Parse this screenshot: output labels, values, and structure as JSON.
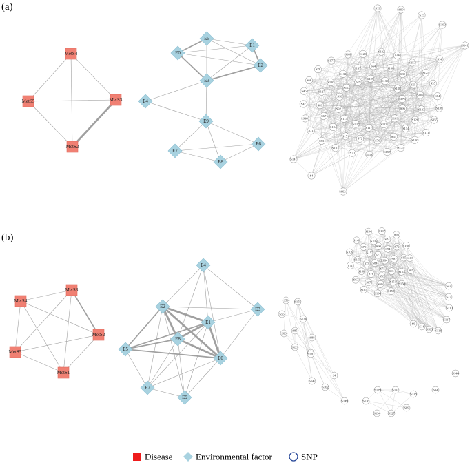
{
  "panels": [
    {
      "id": "a",
      "label": "(a)",
      "disease": {
        "nodes": [
          {
            "id": "MetS4",
            "label": "MetS4"
          },
          {
            "id": "MetS5",
            "label": "MetS5"
          },
          {
            "id": "MetS3",
            "label": "MetS3"
          },
          {
            "id": "MetS2",
            "label": "MetS2"
          }
        ],
        "edges": [
          [
            "MetS4",
            "MetS5",
            1
          ],
          [
            "MetS4",
            "MetS3",
            1
          ],
          [
            "MetS4",
            "MetS2",
            1
          ],
          [
            "MetS5",
            "MetS3",
            1
          ],
          [
            "MetS5",
            "MetS2",
            1
          ],
          [
            "MetS3",
            "MetS2",
            3
          ]
        ]
      },
      "environment": {
        "nodes": [
          {
            "id": "E5",
            "label": "E5"
          },
          {
            "id": "E0",
            "label": "E0"
          },
          {
            "id": "E1",
            "label": "E1"
          },
          {
            "id": "E2",
            "label": "E2"
          },
          {
            "id": "E3",
            "label": "E3"
          },
          {
            "id": "E4",
            "label": "E4"
          },
          {
            "id": "E9",
            "label": "E9"
          },
          {
            "id": "E6",
            "label": "E6"
          },
          {
            "id": "E7",
            "label": "E7"
          },
          {
            "id": "E8",
            "label": "E8"
          }
        ],
        "edges": [
          [
            "E5",
            "E0",
            2
          ],
          [
            "E5",
            "E1",
            1
          ],
          [
            "E5",
            "E2",
            1
          ],
          [
            "E5",
            "E3",
            1
          ],
          [
            "E0",
            "E1",
            1
          ],
          [
            "E0",
            "E2",
            1
          ],
          [
            "E0",
            "E3",
            2
          ],
          [
            "E1",
            "E2",
            2
          ],
          [
            "E1",
            "E3",
            1
          ],
          [
            "E2",
            "E3",
            2
          ],
          [
            "E3",
            "E4",
            1
          ],
          [
            "E3",
            "E9",
            1
          ],
          [
            "E4",
            "E9",
            1
          ],
          [
            "E9",
            "E6",
            1
          ],
          [
            "E9",
            "E7",
            1
          ],
          [
            "E9",
            "E8",
            1
          ],
          [
            "E7",
            "E8",
            1
          ],
          [
            "E8",
            "E6",
            1
          ],
          [
            "E7",
            "E6",
            1
          ]
        ]
      },
      "snp": {
        "cluster_nodes": [
          "S19",
          "S99",
          "S15",
          "S100",
          "S141",
          "S14",
          "S112",
          "S117",
          "S102",
          "S114",
          "S32",
          "S16",
          "S113",
          "S79",
          "S129",
          "S130",
          "S108",
          "S176",
          "S96",
          "S109",
          "S104",
          "S67",
          "S69",
          "S127",
          "S110",
          "S131",
          "S137",
          "S64",
          "S106",
          "S39",
          "S65",
          "S103",
          "S133",
          "S126",
          "S134",
          "S63",
          "S76",
          "S72",
          "S151",
          "S157",
          "S113b",
          "S70",
          "S107",
          "S73",
          "S71",
          "S36",
          "S47",
          "S45",
          "S66",
          "S78",
          "S177",
          "S161",
          "S120",
          "S132",
          "S46",
          "S153",
          "S125",
          "S35",
          "S84",
          "S136",
          "S155",
          "S111",
          "S150",
          "S175"
        ],
        "outer_nodes": [
          "S147",
          "S4",
          "S62"
        ]
      }
    },
    {
      "id": "b",
      "label": "(b)",
      "disease": {
        "nodes": [
          {
            "id": "MetS4",
            "label": "MetS4"
          },
          {
            "id": "MetS3",
            "label": "MetS3"
          },
          {
            "id": "MetS2",
            "label": "MetS2"
          },
          {
            "id": "MetS5",
            "label": "MetS5"
          },
          {
            "id": "MetS1",
            "label": "MetS1"
          }
        ],
        "edges": [
          [
            "MetS4",
            "MetS3",
            1
          ],
          [
            "MetS4",
            "MetS2",
            1
          ],
          [
            "MetS4",
            "MetS5",
            1
          ],
          [
            "MetS4",
            "MetS1",
            1
          ],
          [
            "MetS3",
            "MetS2",
            2
          ],
          [
            "MetS3",
            "MetS5",
            1
          ],
          [
            "MetS3",
            "MetS1",
            1
          ],
          [
            "MetS2",
            "MetS5",
            1
          ],
          [
            "MetS2",
            "MetS1",
            1
          ],
          [
            "MetS5",
            "MetS1",
            1
          ]
        ]
      },
      "environment": {
        "nodes": [
          {
            "id": "E4",
            "label": "E4"
          },
          {
            "id": "E2",
            "label": "E2"
          },
          {
            "id": "E3",
            "label": "E3"
          },
          {
            "id": "E1",
            "label": "E1"
          },
          {
            "id": "E8",
            "label": "E8"
          },
          {
            "id": "E5",
            "label": "E5"
          },
          {
            "id": "E0",
            "label": "E0"
          },
          {
            "id": "E7",
            "label": "E7"
          },
          {
            "id": "E9",
            "label": "E9"
          }
        ],
        "edges": [
          [
            "E4",
            "E2",
            1
          ],
          [
            "E4",
            "E1",
            1
          ],
          [
            "E4",
            "E8",
            1
          ],
          [
            "E4",
            "E0",
            1
          ],
          [
            "E4",
            "E3",
            1
          ],
          [
            "E2",
            "E1",
            3
          ],
          [
            "E2",
            "E8",
            3
          ],
          [
            "E2",
            "E0",
            3
          ],
          [
            "E2",
            "E5",
            2
          ],
          [
            "E2",
            "E3",
            1
          ],
          [
            "E2",
            "E7",
            1
          ],
          [
            "E2",
            "E9",
            1
          ],
          [
            "E1",
            "E8",
            3
          ],
          [
            "E1",
            "E0",
            3
          ],
          [
            "E1",
            "E5",
            2
          ],
          [
            "E1",
            "E3",
            1
          ],
          [
            "E1",
            "E7",
            1
          ],
          [
            "E1",
            "E9",
            1
          ],
          [
            "E8",
            "E0",
            3
          ],
          [
            "E8",
            "E5",
            2
          ],
          [
            "E8",
            "E7",
            1
          ],
          [
            "E8",
            "E9",
            1
          ],
          [
            "E5",
            "E0",
            2
          ],
          [
            "E5",
            "E7",
            1
          ],
          [
            "E0",
            "E3",
            1
          ],
          [
            "E0",
            "E7",
            1
          ],
          [
            "E0",
            "E9",
            1
          ],
          [
            "E7",
            "E9",
            1
          ]
        ]
      },
      "snp": {
        "cluster_nodes": [
          "S84",
          "S77",
          "S64",
          "S75",
          "S82",
          "S91",
          "S78",
          "S76",
          "S73",
          "S157",
          "S90",
          "S94",
          "S74",
          "S72",
          "S95",
          "S153",
          "S151",
          "S69",
          "S67",
          "S156",
          "S155",
          "S70",
          "S105",
          "S66",
          "S160",
          "S103",
          "S65",
          "S150",
          "S158",
          "S104",
          "S105b",
          "S63",
          "S71",
          "S106",
          "S148",
          "S154",
          "S107",
          "S43",
          "S27",
          "S110",
          "S117",
          "S118",
          "S186",
          "S14",
          "S6"
        ],
        "small_clusters": [
          [
            "S59",
            "S155",
            "S56",
            "S124",
            "S85",
            "S66",
            "S88",
            "S159",
            "S123",
            "S120",
            "S4",
            "S147",
            "S162",
            "S149"
          ],
          [
            "S129",
            "S137",
            "S138",
            "S136",
            "S89",
            "S134",
            "S127"
          ],
          [
            "S140",
            "S34"
          ]
        ]
      }
    }
  ],
  "legend": [
    {
      "label": "Disease",
      "color": "#ee1c1c",
      "shape": "square"
    },
    {
      "label": "Environmental factor",
      "color": "#a8d2e0",
      "shape": "diamond"
    },
    {
      "label": "SNP",
      "color": "#2a4a9a",
      "shape": "circle"
    }
  ],
  "colors": {
    "disease_fill": "#f08073",
    "disease_stroke": "#e36a5d",
    "env_fill": "#a8d2e0",
    "env_stroke": "#8bbfd2",
    "snp_fill": "#ffffff",
    "snp_stroke": "#8a8a8a",
    "edge": "#a0a0a0"
  }
}
